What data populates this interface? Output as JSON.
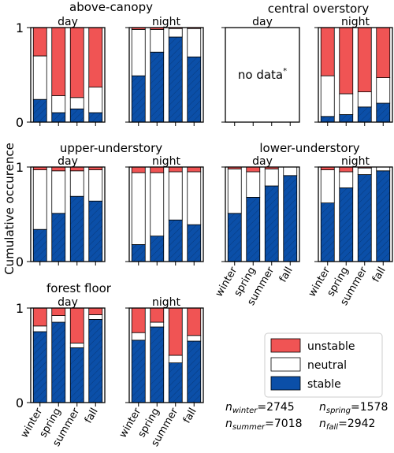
{
  "ylabel": "Cumulative occurence",
  "ytick_labels": [
    "0",
    "1"
  ],
  "categories": [
    "winter",
    "spring",
    "summer",
    "fall"
  ],
  "colors": {
    "stable": "#0b4fa8",
    "neutral": "#ffffff",
    "unstable": "#f05454",
    "frame": "#000000"
  },
  "legend": {
    "items": [
      "unstable",
      "neutral",
      "stable"
    ],
    "placement": "bottom-right"
  },
  "group_titles": [
    "above-canopy",
    "central overstory",
    "upper-understory",
    "lower-understory",
    "forest floor"
  ],
  "no_data_text": "no data",
  "no_data_mark": "*",
  "sample_sizes": [
    {
      "sym": "n",
      "sub": "winter",
      "eq": "=2745"
    },
    {
      "sym": "n",
      "sub": "spring",
      "eq": "=1578"
    },
    {
      "sym": "n",
      "sub": "summer",
      "eq": "=7018"
    },
    {
      "sym": "n",
      "sub": "fall",
      "eq": "=2942"
    }
  ],
  "chart_data": [
    {
      "type": "bar",
      "stacked": true,
      "group": "above-canopy",
      "panel": "day",
      "ylim": [
        0,
        1
      ],
      "series": [
        {
          "name": "stable",
          "values": [
            0.24,
            0.1,
            0.14,
            0.1
          ]
        },
        {
          "name": "neutral",
          "values": [
            0.46,
            0.18,
            0.12,
            0.27
          ]
        },
        {
          "name": "unstable",
          "values": [
            0.3,
            0.72,
            0.74,
            0.63
          ]
        }
      ]
    },
    {
      "type": "bar",
      "stacked": true,
      "group": "above-canopy",
      "panel": "night",
      "ylim": [
        0,
        1
      ],
      "series": [
        {
          "name": "stable",
          "values": [
            0.49,
            0.74,
            0.9,
            0.69
          ]
        },
        {
          "name": "neutral",
          "values": [
            0.49,
            0.24,
            0.09,
            0.3
          ]
        },
        {
          "name": "unstable",
          "values": [
            0.02,
            0.02,
            0.01,
            0.01
          ]
        }
      ]
    },
    {
      "type": "bar",
      "stacked": true,
      "group": "central overstory",
      "panel": "day",
      "ylim": [
        0,
        1
      ],
      "no_data": true,
      "series": []
    },
    {
      "type": "bar",
      "stacked": true,
      "group": "central overstory",
      "panel": "night",
      "ylim": [
        0,
        1
      ],
      "series": [
        {
          "name": "stable",
          "values": [
            0.06,
            0.08,
            0.16,
            0.2
          ]
        },
        {
          "name": "neutral",
          "values": [
            0.43,
            0.22,
            0.16,
            0.27
          ]
        },
        {
          "name": "unstable",
          "values": [
            0.51,
            0.7,
            0.68,
            0.53
          ]
        }
      ]
    },
    {
      "type": "bar",
      "stacked": true,
      "group": "upper-understory",
      "panel": "day",
      "ylim": [
        0,
        1
      ],
      "series": [
        {
          "name": "stable",
          "values": [
            0.34,
            0.51,
            0.69,
            0.64
          ]
        },
        {
          "name": "neutral",
          "values": [
            0.63,
            0.45,
            0.27,
            0.33
          ]
        },
        {
          "name": "unstable",
          "values": [
            0.03,
            0.04,
            0.04,
            0.03
          ]
        }
      ]
    },
    {
      "type": "bar",
      "stacked": true,
      "group": "upper-understory",
      "panel": "night",
      "ylim": [
        0,
        1
      ],
      "series": [
        {
          "name": "stable",
          "values": [
            0.18,
            0.27,
            0.44,
            0.39
          ]
        },
        {
          "name": "neutral",
          "values": [
            0.76,
            0.67,
            0.51,
            0.56
          ]
        },
        {
          "name": "unstable",
          "values": [
            0.06,
            0.06,
            0.05,
            0.05
          ]
        }
      ]
    },
    {
      "type": "bar",
      "stacked": true,
      "group": "lower-understory",
      "panel": "day",
      "ylim": [
        0,
        1
      ],
      "series": [
        {
          "name": "stable",
          "values": [
            0.51,
            0.68,
            0.8,
            0.91
          ]
        },
        {
          "name": "neutral",
          "values": [
            0.47,
            0.27,
            0.18,
            0.09
          ]
        },
        {
          "name": "unstable",
          "values": [
            0.02,
            0.05,
            0.02,
            0.0
          ]
        }
      ]
    },
    {
      "type": "bar",
      "stacked": true,
      "group": "lower-understory",
      "panel": "night",
      "ylim": [
        0,
        1
      ],
      "series": [
        {
          "name": "stable",
          "values": [
            0.62,
            0.78,
            0.92,
            0.96
          ]
        },
        {
          "name": "neutral",
          "values": [
            0.35,
            0.17,
            0.07,
            0.04
          ]
        },
        {
          "name": "unstable",
          "values": [
            0.03,
            0.05,
            0.01,
            0.0
          ]
        }
      ]
    },
    {
      "type": "bar",
      "stacked": true,
      "group": "forest floor",
      "panel": "day",
      "ylim": [
        0,
        1
      ],
      "series": [
        {
          "name": "stable",
          "values": [
            0.75,
            0.85,
            0.58,
            0.88
          ]
        },
        {
          "name": "neutral",
          "values": [
            0.06,
            0.07,
            0.05,
            0.05
          ]
        },
        {
          "name": "unstable",
          "values": [
            0.19,
            0.08,
            0.37,
            0.07
          ]
        }
      ]
    },
    {
      "type": "bar",
      "stacked": true,
      "group": "forest floor",
      "panel": "night",
      "ylim": [
        0,
        1
      ],
      "series": [
        {
          "name": "stable",
          "values": [
            0.66,
            0.8,
            0.42,
            0.65
          ]
        },
        {
          "name": "neutral",
          "values": [
            0.08,
            0.05,
            0.08,
            0.06
          ]
        },
        {
          "name": "unstable",
          "values": [
            0.26,
            0.15,
            0.5,
            0.29
          ]
        }
      ]
    }
  ]
}
